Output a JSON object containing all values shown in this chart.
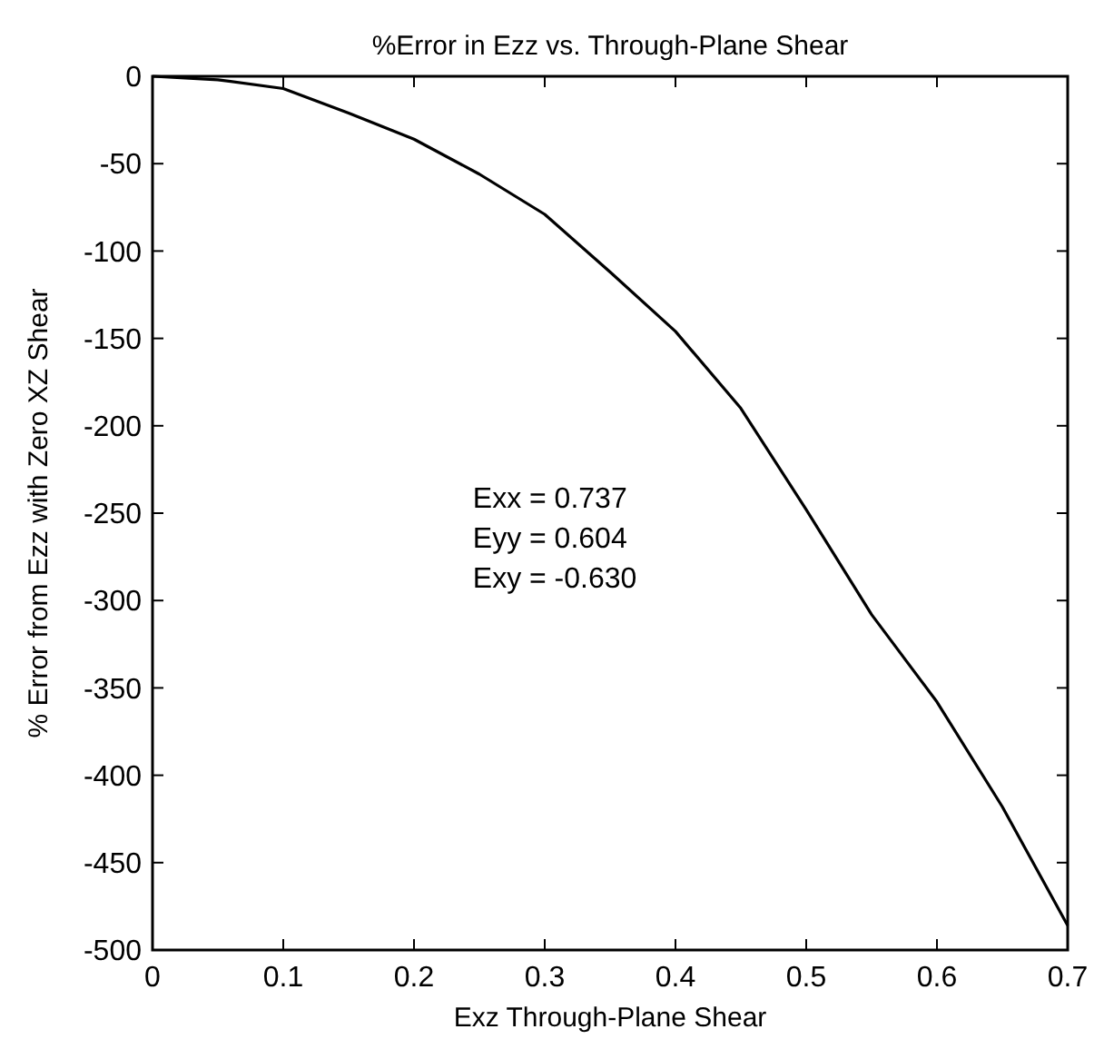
{
  "chart_data": {
    "type": "line",
    "title": "%Error in Ezz vs. Through-Plane Shear",
    "xlabel": "Exz Through-Plane Shear",
    "ylabel": "% Error from Ezz with Zero XZ Shear",
    "x": [
      0,
      0.05,
      0.1,
      0.15,
      0.2,
      0.25,
      0.3,
      0.35,
      0.4,
      0.45,
      0.5,
      0.55,
      0.6,
      0.65,
      0.7
    ],
    "series": [
      {
        "color": "#000000",
        "values": [
          0,
          -2,
          -7,
          -21,
          -36,
          -56,
          -79,
          -112,
          -146,
          -190,
          -248,
          -308,
          -358,
          -418,
          -486
        ]
      }
    ],
    "xlim": [
      0,
      0.7
    ],
    "xticks": [
      0,
      0.1,
      0.2,
      0.3,
      0.4,
      0.5,
      0.6,
      0.7
    ],
    "ylim": [
      -500,
      0
    ],
    "yticks": [
      -500,
      -450,
      -400,
      -350,
      -300,
      -250,
      -200,
      -150,
      -100,
      -50,
      0
    ],
    "annotations": [
      "Exx = 0.737",
      "Eyy = 0.604",
      "Exy = -0.630"
    ],
    "grid": false,
    "line_style": "solid"
  }
}
